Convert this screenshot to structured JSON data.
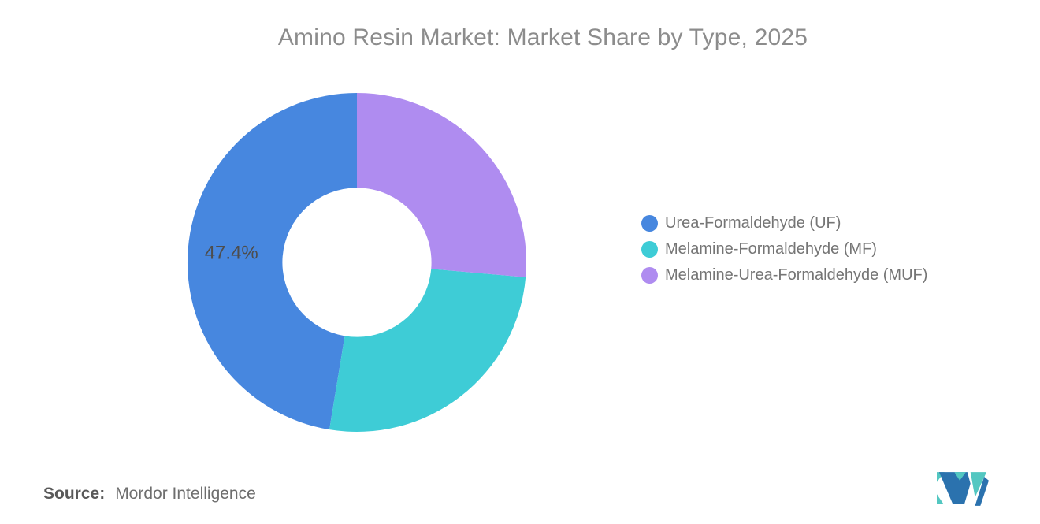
{
  "chart_data": {
    "type": "pie",
    "subtype": "donut",
    "title": "Amino Resin Market: Market Share by Type, 2025",
    "unit": "%",
    "slices": [
      {
        "label": "Urea-Formaldehyde (UF)",
        "value": 47.4,
        "color": "#4787DF",
        "data_label": "47.4%"
      },
      {
        "label": "Melamine-Formaldehyde (MF)",
        "value": 26.2,
        "color": "#3ECCD6",
        "data_label": ""
      },
      {
        "label": "Melamine-Urea-Formaldehyde (MUF)",
        "value": 26.4,
        "color": "#AF8CF0",
        "data_label": ""
      }
    ],
    "start_angle": "top",
    "direction": "counterclockwise",
    "outer_radius_px": 215,
    "inner_radius_ratio": 0.44,
    "legend_position": "right",
    "grid": "off",
    "title_color": "#8C8C8C",
    "data_label_color": "#4D4D4D",
    "legend_text_color": "#757575",
    "background_color": "#FFFFFF"
  },
  "source": {
    "prefix": "Source:",
    "text": "Mordor Intelligence"
  },
  "logo": {
    "name": "mordor-intelligence-logo",
    "teal": "#53C7C1",
    "blue": "#2B72AE"
  }
}
